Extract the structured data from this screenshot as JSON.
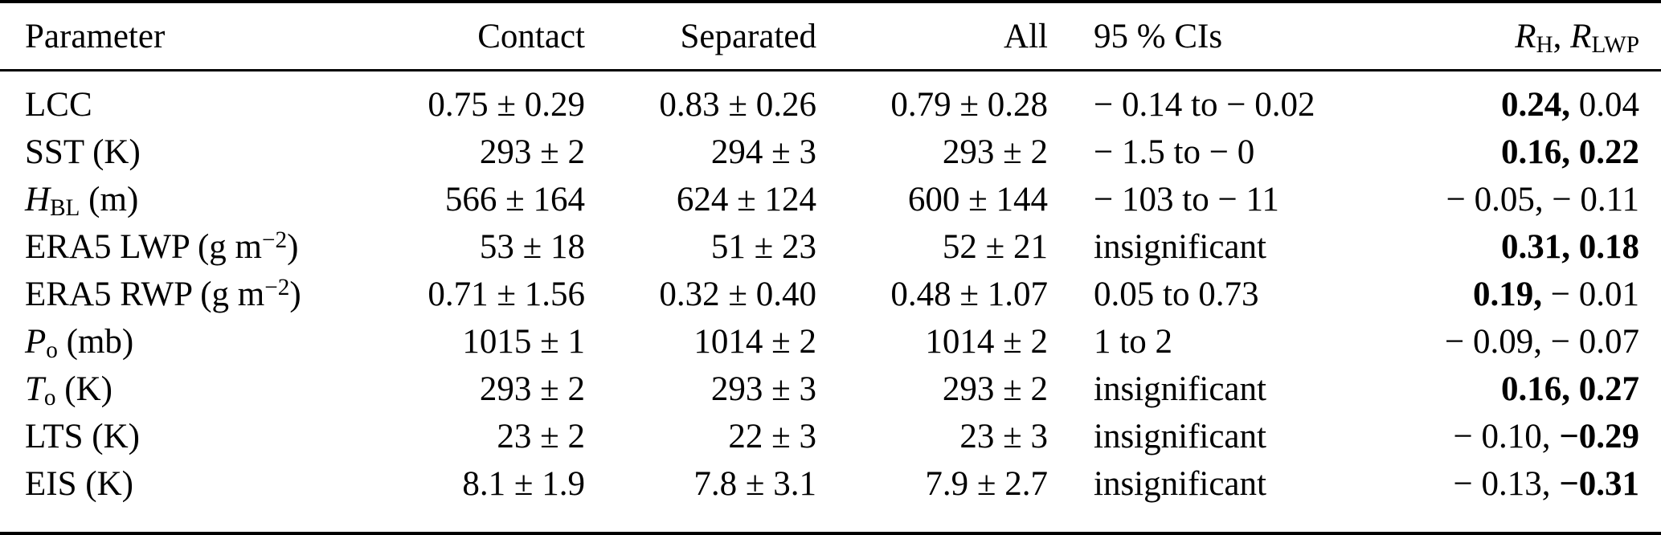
{
  "style": {
    "text_color": "#000000",
    "background_color": "#ffffff",
    "rule_color": "#000000"
  },
  "table": {
    "header": {
      "parameter": "Parameter",
      "contact": "Contact",
      "separated": "Separated",
      "all": "All",
      "cis": "95 % CIs",
      "r": [
        {
          "t": "R",
          "i": true
        },
        {
          "t": "H",
          "sub": true
        },
        {
          "t": ", "
        },
        {
          "t": "R",
          "i": true
        },
        {
          "t": "LWP",
          "sub": true
        }
      ]
    },
    "rows": [
      {
        "parameter": [
          {
            "t": "LCC"
          }
        ],
        "contact": "0.75 ± 0.29",
        "separated": "0.83 ± 0.26",
        "all": "0.79 ± 0.28",
        "cis": "− 0.14 to − 0.02",
        "r": [
          {
            "t": "0.24",
            "bold": true
          },
          {
            "t": "0.04",
            "bold": false
          }
        ]
      },
      {
        "parameter": [
          {
            "t": "SST (K)"
          }
        ],
        "contact": "293 ± 2",
        "separated": "294 ± 3",
        "all": "293 ± 2",
        "cis": "− 1.5 to − 0",
        "r": [
          {
            "t": "0.16",
            "bold": true
          },
          {
            "t": "0.22",
            "bold": true
          }
        ]
      },
      {
        "parameter": [
          {
            "t": "H",
            "i": true
          },
          {
            "t": "BL",
            "sub": true
          },
          {
            "t": " (m)"
          }
        ],
        "contact": "566 ± 164",
        "separated": "624 ± 124",
        "all": "600 ± 144",
        "cis": "− 103 to − 11",
        "r": [
          {
            "t": "− 0.05",
            "bold": false
          },
          {
            "t": "− 0.11",
            "bold": false
          }
        ]
      },
      {
        "parameter": [
          {
            "t": "ERA5 LWP (g m"
          },
          {
            "t": "−2",
            "sup": true
          },
          {
            "t": ")"
          }
        ],
        "contact": "53 ± 18",
        "separated": "51 ± 23",
        "all": "52 ± 21",
        "cis": "insignificant",
        "r": [
          {
            "t": "0.31",
            "bold": true
          },
          {
            "t": "0.18",
            "bold": true
          }
        ]
      },
      {
        "parameter": [
          {
            "t": "ERA5 RWP (g m"
          },
          {
            "t": "−2",
            "sup": true
          },
          {
            "t": ")"
          }
        ],
        "contact": "0.71 ± 1.56",
        "separated": "0.32 ± 0.40",
        "all": "0.48 ± 1.07",
        "cis": "0.05 to 0.73",
        "r": [
          {
            "t": "0.19",
            "bold": true
          },
          {
            "t": "− 0.01",
            "bold": false
          }
        ]
      },
      {
        "parameter": [
          {
            "t": "P",
            "i": true
          },
          {
            "t": "o",
            "sub": true
          },
          {
            "t": " (mb)"
          }
        ],
        "contact": "1015 ± 1",
        "separated": "1014 ± 2",
        "all": "1014 ± 2",
        "cis": "1 to 2",
        "r": [
          {
            "t": "− 0.09",
            "bold": false
          },
          {
            "t": "− 0.07",
            "bold": false
          }
        ]
      },
      {
        "parameter": [
          {
            "t": "T",
            "i": true
          },
          {
            "t": "o",
            "sub": true
          },
          {
            "t": " (K)"
          }
        ],
        "contact": "293 ± 2",
        "separated": "293 ± 3",
        "all": "293 ± 2",
        "cis": "insignificant",
        "r": [
          {
            "t": "0.16",
            "bold": true
          },
          {
            "t": "0.27",
            "bold": true
          }
        ]
      },
      {
        "parameter": [
          {
            "t": "LTS (K)"
          }
        ],
        "contact": "23 ± 2",
        "separated": "22 ± 3",
        "all": "23 ± 3",
        "cis": "insignificant",
        "r": [
          {
            "t": "− 0.10",
            "bold": false
          },
          {
            "t": "−0.29",
            "bold": true
          }
        ]
      },
      {
        "parameter": [
          {
            "t": "EIS (K)"
          }
        ],
        "contact": "8.1 ± 1.9",
        "separated": "7.8 ± 3.1",
        "all": "7.9 ± 2.7",
        "cis": "insignificant",
        "r": [
          {
            "t": "− 0.13",
            "bold": false
          },
          {
            "t": "−0.31",
            "bold": true
          }
        ]
      }
    ]
  }
}
